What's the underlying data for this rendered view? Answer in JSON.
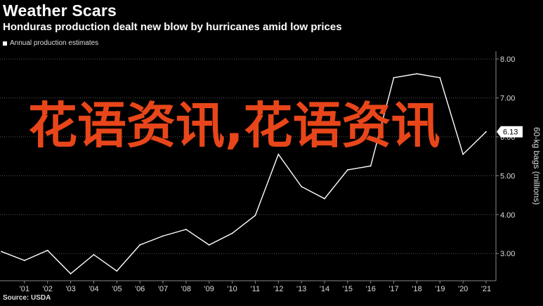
{
  "header": {
    "title": "Weather Scars",
    "subtitle": "Honduras production dealt new blow by hurricanes amid low prices",
    "legend_label": "Annual production estimates",
    "source": "Source: USDA"
  },
  "overlay_text": "花语资讯,花语资讯",
  "colors": {
    "background": "#000000",
    "line": "#ffffff",
    "grid": "#555555",
    "overlay": "#e8461a"
  },
  "chart_data": {
    "type": "line",
    "title": "Weather Scars",
    "subtitle": "Honduras production dealt new blow by hurricanes amid low prices",
    "ylabel": "60-kg bags (millions)",
    "xlabel": "",
    "ylim": [
      2.3,
      8.2
    ],
    "yticks": [
      3.0,
      4.0,
      5.0,
      6.0,
      7.0,
      8.0
    ],
    "ytick_labels": [
      "3.00",
      "4.00",
      "5.00",
      "6.00",
      "7.00",
      "8.00"
    ],
    "x_labels": [
      "'01",
      "'02",
      "'03",
      "'04",
      "'05",
      "'06",
      "'07",
      "'08",
      "'09",
      "'10",
      "'11",
      "'12",
      "'13",
      "'14",
      "'15",
      "'16",
      "'17",
      "'18",
      "'19",
      "'20",
      "'21"
    ],
    "x": [
      2000,
      2001,
      2002,
      2003,
      2004,
      2005,
      2006,
      2007,
      2008,
      2009,
      2010,
      2011,
      2012,
      2013,
      2014,
      2015,
      2016,
      2017,
      2018,
      2019,
      2020,
      2021
    ],
    "series": [
      {
        "name": "Annual production estimates",
        "values": [
          3.05,
          2.82,
          3.08,
          2.48,
          2.97,
          2.55,
          3.22,
          3.45,
          3.62,
          3.22,
          3.52,
          3.98,
          5.55,
          4.72,
          4.41,
          5.15,
          5.25,
          7.52,
          7.62,
          7.52,
          5.55,
          6.13
        ]
      }
    ],
    "last_value_label": "6.13",
    "grid": true,
    "legend": "top-left"
  }
}
